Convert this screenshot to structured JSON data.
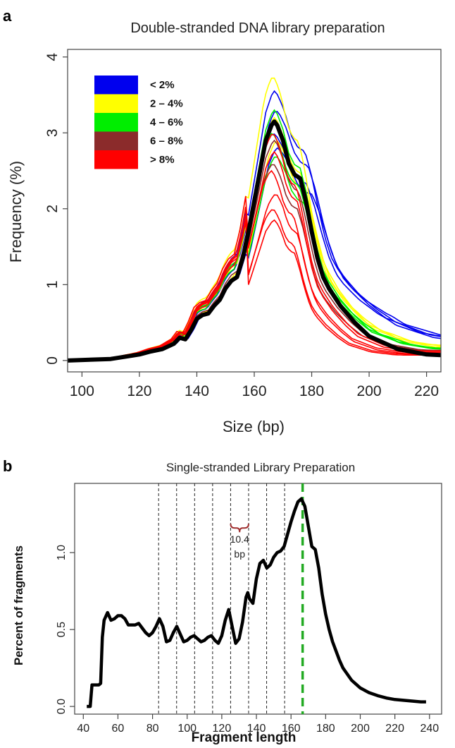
{
  "chart_data": [
    {
      "panel_label": "a",
      "type": "line",
      "title": "Double-stranded DNA library preparation",
      "xlabel": "Size (bp)",
      "ylabel": "Frequency (%)",
      "xlim": [
        95,
        225
      ],
      "ylim": [
        -0.15,
        4.1
      ],
      "xticks": [
        100,
        120,
        140,
        160,
        180,
        200,
        220
      ],
      "yticks": [
        0,
        1,
        2,
        3,
        4
      ],
      "grid": false,
      "legend": {
        "placement": "top-left",
        "entries": [
          {
            "label": "< 2%",
            "color": "#0000ee"
          },
          {
            "label": "2 – 4%",
            "color": "#ffff00"
          },
          {
            "label": "4 – 6%",
            "color": "#00ee00"
          },
          {
            "label": "6 – 8%",
            "color": "#8b2b2b"
          },
          {
            "label": "> 8%",
            "color": "#ff0000"
          }
        ]
      },
      "mean_series": {
        "name": "",
        "color": "#000000",
        "points": [
          [
            95,
            0.0
          ],
          [
            110,
            0.02
          ],
          [
            120,
            0.08
          ],
          [
            124,
            0.12
          ],
          [
            128,
            0.15
          ],
          [
            132,
            0.22
          ],
          [
            134,
            0.3
          ],
          [
            136,
            0.28
          ],
          [
            138,
            0.4
          ],
          [
            140,
            0.55
          ],
          [
            142,
            0.6
          ],
          [
            144,
            0.62
          ],
          [
            146,
            0.72
          ],
          [
            148,
            0.8
          ],
          [
            150,
            0.95
          ],
          [
            152,
            1.05
          ],
          [
            154,
            1.1
          ],
          [
            156,
            1.35
          ],
          [
            158,
            1.7
          ],
          [
            160,
            2.1
          ],
          [
            162,
            2.5
          ],
          [
            164,
            2.9
          ],
          [
            166,
            3.1
          ],
          [
            167,
            3.15
          ],
          [
            168,
            3.1
          ],
          [
            170,
            2.9
          ],
          [
            172,
            2.6
          ],
          [
            174,
            2.45
          ],
          [
            176,
            2.4
          ],
          [
            178,
            2.1
          ],
          [
            180,
            1.7
          ],
          [
            182,
            1.35
          ],
          [
            184,
            1.1
          ],
          [
            186,
            0.95
          ],
          [
            190,
            0.72
          ],
          [
            195,
            0.5
          ],
          [
            200,
            0.32
          ],
          [
            210,
            0.15
          ],
          [
            220,
            0.08
          ],
          [
            225,
            0.07
          ]
        ]
      },
      "individual_series": [
        {
          "color": "#0000ee",
          "peak": 3.55,
          "shift": 0.0,
          "spread": 1.18,
          "base": 0.2
        },
        {
          "color": "#0000ee",
          "peak": 3.3,
          "shift": 0.5,
          "spread": 1.25,
          "base": 0.18
        },
        {
          "color": "#0000ee",
          "peak": 3.0,
          "shift": -0.5,
          "spread": 1.3,
          "base": 0.16
        },
        {
          "color": "#0000ee",
          "peak": 2.8,
          "shift": 1.0,
          "spread": 1.35,
          "base": 0.19
        },
        {
          "color": "#ffff00",
          "peak": 3.75,
          "shift": -0.5,
          "spread": 1.0,
          "base": 0.12
        },
        {
          "color": "#ffff00",
          "peak": 3.2,
          "shift": 0.0,
          "spread": 1.05,
          "base": 0.1
        },
        {
          "color": "#ffff00",
          "peak": 2.9,
          "shift": 0.8,
          "spread": 1.1,
          "base": 0.11
        },
        {
          "color": "#00ee00",
          "peak": 3.3,
          "shift": 0.0,
          "spread": 1.0,
          "base": 0.09
        },
        {
          "color": "#00ee00",
          "peak": 3.0,
          "shift": -0.8,
          "spread": 1.05,
          "base": 0.08
        },
        {
          "color": "#00ee00",
          "peak": 2.7,
          "shift": 0.5,
          "spread": 1.1,
          "base": 0.08
        },
        {
          "color": "#8b2b2b",
          "peak": 2.9,
          "shift": 0.0,
          "spread": 0.95,
          "base": 0.07
        },
        {
          "color": "#8b2b2b",
          "peak": 2.6,
          "shift": -0.5,
          "spread": 0.95,
          "base": 0.07
        },
        {
          "color": "#ff0000",
          "peak": 3.0,
          "shift": -0.5,
          "spread": 0.9,
          "base": 0.06,
          "left": 1.05
        },
        {
          "color": "#ff0000",
          "peak": 2.75,
          "shift": 0.0,
          "spread": 0.88,
          "base": 0.05,
          "left": 1.2
        },
        {
          "color": "#ff0000",
          "peak": 2.5,
          "shift": -1.0,
          "spread": 0.85,
          "base": 0.05,
          "left": 1.35
        },
        {
          "color": "#ff0000",
          "peak": 2.2,
          "shift": 0.5,
          "spread": 0.82,
          "base": 0.04,
          "left": 1.5
        },
        {
          "color": "#ff0000",
          "peak": 2.0,
          "shift": -0.5,
          "spread": 0.8,
          "base": 0.04,
          "left": 1.6
        },
        {
          "color": "#ff0000",
          "peak": 1.85,
          "shift": 0.0,
          "spread": 0.78,
          "base": 0.03,
          "left": 1.7
        }
      ]
    },
    {
      "panel_label": "b",
      "type": "line",
      "title": "Single-stranded Library Preparation",
      "xlabel": "Fragment length",
      "ylabel": "Percent of fragments",
      "xlim": [
        35,
        247
      ],
      "ylim": [
        -0.05,
        1.45
      ],
      "xticks": [
        40,
        60,
        80,
        100,
        120,
        140,
        160,
        180,
        200,
        220,
        240
      ],
      "yticks": [
        0.0,
        0.5,
        1.0
      ],
      "ytick_labels": [
        "0.0",
        "0.5",
        "1.0"
      ],
      "grid": false,
      "periodicity_lines": [
        83.5,
        93.9,
        104.3,
        114.7,
        125.1,
        135.5,
        145.9,
        156.3
      ],
      "mode_line": {
        "x": 166.7,
        "color": "#22aa22"
      },
      "annotation": {
        "line1": "10.4",
        "line2": "bp",
        "x_from": 125.1,
        "x_to": 135.5,
        "y": 1.16,
        "color": "#a03030"
      },
      "series": [
        {
          "name": "",
          "color": "#000000",
          "points": [
            [
              42,
              0.0
            ],
            [
              44,
              0.0
            ],
            [
              45,
              0.14
            ],
            [
              47,
              0.14
            ],
            [
              49,
              0.14
            ],
            [
              50,
              0.15
            ],
            [
              51,
              0.45
            ],
            [
              52,
              0.56
            ],
            [
              54,
              0.61
            ],
            [
              56,
              0.56
            ],
            [
              58,
              0.57
            ],
            [
              60,
              0.59
            ],
            [
              62,
              0.59
            ],
            [
              64,
              0.57
            ],
            [
              66,
              0.53
            ],
            [
              70,
              0.53
            ],
            [
              72,
              0.54
            ],
            [
              74,
              0.51
            ],
            [
              76,
              0.48
            ],
            [
              78,
              0.46
            ],
            [
              80,
              0.48
            ],
            [
              82,
              0.52
            ],
            [
              84,
              0.57
            ],
            [
              86,
              0.52
            ],
            [
              88,
              0.42
            ],
            [
              90,
              0.43
            ],
            [
              92,
              0.48
            ],
            [
              94,
              0.52
            ],
            [
              96,
              0.47
            ],
            [
              98,
              0.42
            ],
            [
              100,
              0.43
            ],
            [
              102,
              0.45
            ],
            [
              104,
              0.46
            ],
            [
              106,
              0.44
            ],
            [
              108,
              0.42
            ],
            [
              110,
              0.43
            ],
            [
              112,
              0.45
            ],
            [
              114,
              0.46
            ],
            [
              116,
              0.43
            ],
            [
              118,
              0.41
            ],
            [
              120,
              0.46
            ],
            [
              122,
              0.56
            ],
            [
              124,
              0.63
            ],
            [
              126,
              0.52
            ],
            [
              128,
              0.41
            ],
            [
              130,
              0.44
            ],
            [
              132,
              0.55
            ],
            [
              134,
              0.71
            ],
            [
              135,
              0.74
            ],
            [
              136,
              0.7
            ],
            [
              138,
              0.67
            ],
            [
              140,
              0.83
            ],
            [
              142,
              0.93
            ],
            [
              144,
              0.95
            ],
            [
              146,
              0.9
            ],
            [
              148,
              0.92
            ],
            [
              150,
              0.97
            ],
            [
              152,
              1.0
            ],
            [
              154,
              1.01
            ],
            [
              156,
              1.04
            ],
            [
              158,
              1.12
            ],
            [
              160,
              1.2
            ],
            [
              162,
              1.27
            ],
            [
              164,
              1.33
            ],
            [
              166,
              1.35
            ],
            [
              168,
              1.3
            ],
            [
              170,
              1.17
            ],
            [
              172,
              1.04
            ],
            [
              174,
              1.02
            ],
            [
              176,
              0.9
            ],
            [
              178,
              0.73
            ],
            [
              180,
              0.6
            ],
            [
              182,
              0.5
            ],
            [
              184,
              0.42
            ],
            [
              186,
              0.36
            ],
            [
              188,
              0.3
            ],
            [
              190,
              0.25
            ],
            [
              195,
              0.17
            ],
            [
              200,
              0.12
            ],
            [
              205,
              0.09
            ],
            [
              210,
              0.07
            ],
            [
              215,
              0.055
            ],
            [
              220,
              0.045
            ],
            [
              225,
              0.04
            ],
            [
              230,
              0.035
            ],
            [
              235,
              0.03
            ],
            [
              238,
              0.03
            ]
          ]
        }
      ]
    }
  ]
}
